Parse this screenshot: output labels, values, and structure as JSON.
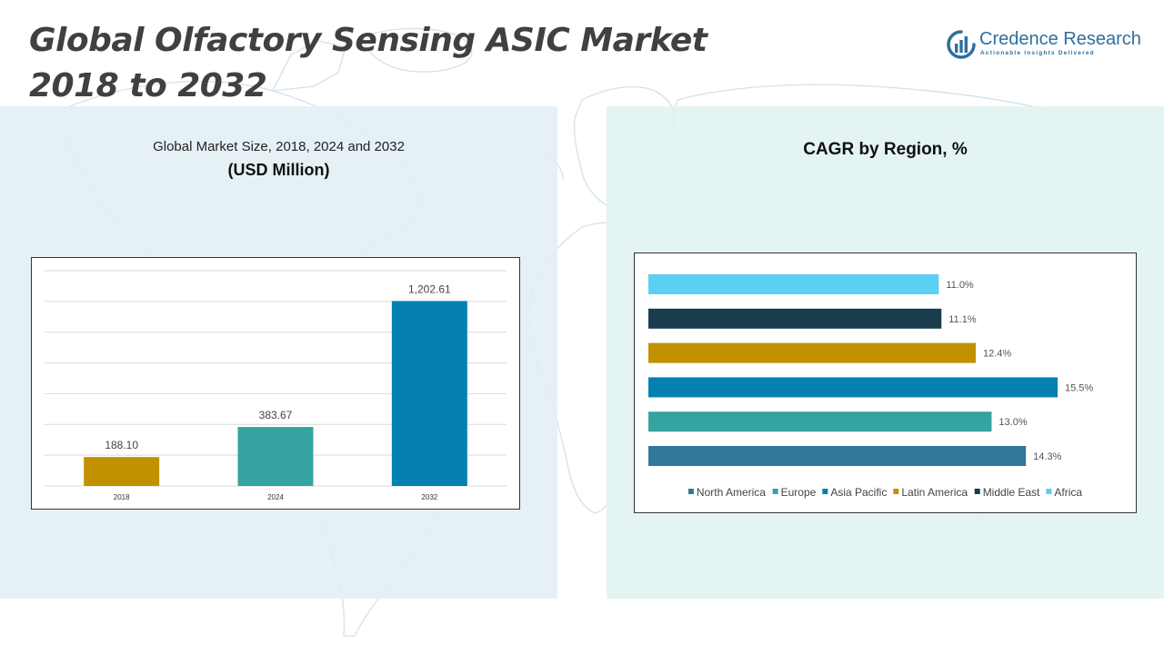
{
  "header": {
    "title_line1": "Global Olfactory Sensing ASIC Market",
    "title_line2": "2018 to 2032"
  },
  "logo": {
    "name": "Credence Research",
    "tagline": "Actionable Insights Delivered",
    "icon": "credence-logo-icon",
    "color": "#2d6f9e"
  },
  "left_panel": {
    "subtitle": "Global Market Size, 2018, 2024 and 2032",
    "unit": "(USD Million)"
  },
  "right_panel": {
    "title": "CAGR by Region, %"
  },
  "chart_data": [
    {
      "type": "bar",
      "categories": [
        "2018",
        "2024",
        "2032"
      ],
      "values": [
        188.1,
        383.67,
        1202.61
      ],
      "value_labels": [
        "188.10",
        "383.67",
        "1,202.61"
      ],
      "colors": [
        "#c19100",
        "#35a39f",
        "#0480b2"
      ],
      "ylim": [
        0,
        1400
      ],
      "grid": true,
      "legend": false
    },
    {
      "type": "bar",
      "orientation": "horizontal",
      "categories": [
        "North America",
        "Europe",
        "Asia Pacific",
        "Latin America",
        "Middle East",
        "Africa"
      ],
      "values": [
        14.3,
        13.0,
        15.5,
        12.4,
        11.1,
        11.0
      ],
      "value_labels": [
        "14.3%",
        "13.0%",
        "15.5%",
        "12.4%",
        "11.1%",
        "11.0%"
      ],
      "colors": [
        "#2f7899",
        "#35a39f",
        "#0480b2",
        "#c19100",
        "#193d4d",
        "#5ccff5"
      ],
      "xlim": [
        0,
        15.5
      ],
      "legend": "bottom",
      "grid": false
    }
  ]
}
